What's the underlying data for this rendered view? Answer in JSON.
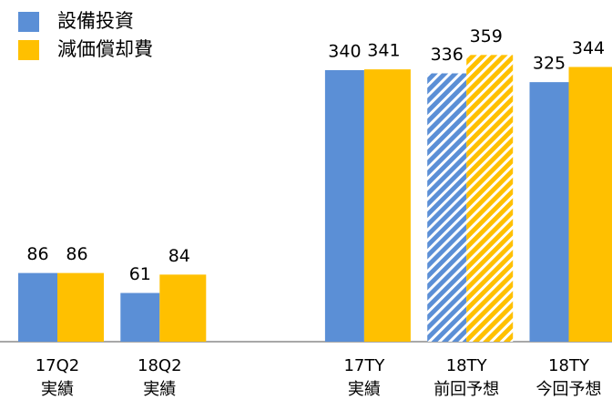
{
  "chart_data": {
    "type": "bar",
    "categories": [
      [
        "17Q2",
        "実績"
      ],
      [
        "18Q2",
        "実績"
      ],
      null,
      [
        "17TY",
        "実績"
      ],
      [
        "18TY",
        "前回予想"
      ],
      [
        "18TY",
        "今回予想"
      ]
    ],
    "series": [
      {
        "name": "設備投資",
        "color": "#5b8fd6",
        "values": [
          86,
          61,
          null,
          340,
          336,
          325
        ]
      },
      {
        "name": "減価償却費",
        "color": "#ffc000",
        "values": [
          86,
          84,
          null,
          341,
          359,
          344
        ]
      }
    ],
    "patterned": [
      false,
      false,
      false,
      false,
      true,
      false
    ],
    "legend": "upper left"
  }
}
